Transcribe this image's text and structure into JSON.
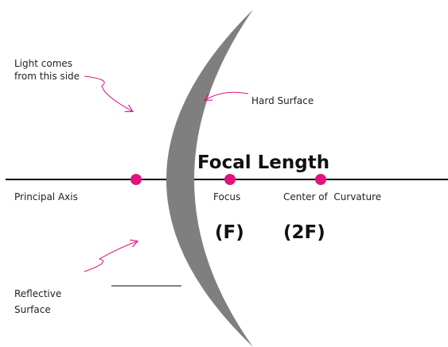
{
  "labels": {
    "light_source": [
      "Light comes",
      "from this side"
    ],
    "hard_surface": "Hard Surface",
    "focal_length": "Focal Length",
    "principal_axis": "Principal Axis",
    "focus": "Focus",
    "center_of_curvature": "Center of  Curvature",
    "focus_symbol": "(F)",
    "center_symbol": "(2F)",
    "reflective_surface": [
      "Reflective",
      "Surface"
    ]
  }
}
